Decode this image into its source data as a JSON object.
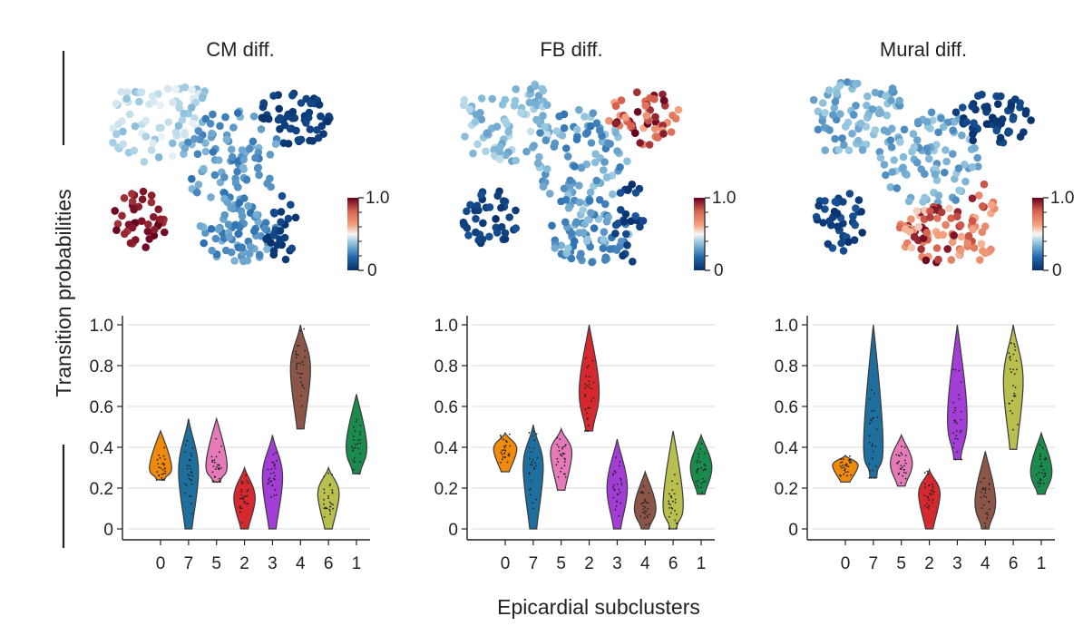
{
  "figure": {
    "ylabel": "Transition probabilities",
    "xlabel": "Epicardial subclusters",
    "colorbar_ticks": [
      "1.0",
      "0"
    ],
    "colors": {
      "0": "#f08a0a",
      "7": "#1f6f9e",
      "5": "#e57ab8",
      "2": "#d6282f",
      "3": "#a23ed6",
      "4": "#8b5547",
      "6": "#b8bf4e",
      "1": "#1b8a4d"
    }
  },
  "chart_data": [
    {
      "type": "violin",
      "title": "CM diff.",
      "categories": [
        "0",
        "7",
        "5",
        "2",
        "3",
        "4",
        "6",
        "1"
      ],
      "yticks": [
        "0",
        "0.2",
        "0.4",
        "0.6",
        "0.8",
        "1.0"
      ],
      "ylim": [
        0,
        1.0
      ],
      "series": [
        {
          "cluster": "0",
          "min": 0.24,
          "max": 0.48,
          "median": 0.3
        },
        {
          "cluster": "7",
          "min": 0.0,
          "max": 0.54,
          "median": 0.28
        },
        {
          "cluster": "5",
          "min": 0.23,
          "max": 0.54,
          "median": 0.31
        },
        {
          "cluster": "2",
          "min": 0.0,
          "max": 0.3,
          "median": 0.15
        },
        {
          "cluster": "3",
          "min": 0.0,
          "max": 0.46,
          "median": 0.25
        },
        {
          "cluster": "4",
          "min": 0.49,
          "max": 1.0,
          "median": 0.78
        },
        {
          "cluster": "6",
          "min": 0.0,
          "max": 0.3,
          "median": 0.17
        },
        {
          "cluster": "1",
          "min": 0.27,
          "max": 0.66,
          "median": 0.4
        }
      ]
    },
    {
      "type": "violin",
      "title": "FB diff.",
      "categories": [
        "0",
        "7",
        "5",
        "2",
        "3",
        "4",
        "6",
        "1"
      ],
      "yticks": [
        "0",
        "0.2",
        "0.4",
        "0.6",
        "0.8",
        "1.0"
      ],
      "ylim": [
        0,
        1.0
      ],
      "series": [
        {
          "cluster": "0",
          "min": 0.28,
          "max": 0.47,
          "median": 0.39
        },
        {
          "cluster": "7",
          "min": 0.0,
          "max": 0.51,
          "median": 0.3
        },
        {
          "cluster": "5",
          "min": 0.19,
          "max": 0.49,
          "median": 0.37
        },
        {
          "cluster": "2",
          "min": 0.48,
          "max": 1.0,
          "median": 0.67
        },
        {
          "cluster": "3",
          "min": 0.0,
          "max": 0.44,
          "median": 0.2
        },
        {
          "cluster": "4",
          "min": 0.0,
          "max": 0.28,
          "median": 0.1
        },
        {
          "cluster": "6",
          "min": 0.0,
          "max": 0.48,
          "median": 0.12
        },
        {
          "cluster": "1",
          "min": 0.17,
          "max": 0.46,
          "median": 0.3
        }
      ]
    },
    {
      "type": "violin",
      "title": "Mural diff.",
      "categories": [
        "0",
        "7",
        "5",
        "2",
        "3",
        "4",
        "6",
        "1"
      ],
      "yticks": [
        "0",
        "0.2",
        "0.4",
        "0.6",
        "0.8",
        "1.0"
      ],
      "ylim": [
        0,
        1.0
      ],
      "series": [
        {
          "cluster": "0",
          "min": 0.23,
          "max": 0.36,
          "median": 0.31
        },
        {
          "cluster": "7",
          "min": 0.25,
          "max": 1.0,
          "median": 0.41
        },
        {
          "cluster": "5",
          "min": 0.21,
          "max": 0.46,
          "median": 0.32
        },
        {
          "cluster": "2",
          "min": 0.0,
          "max": 0.29,
          "median": 0.17
        },
        {
          "cluster": "3",
          "min": 0.34,
          "max": 1.0,
          "median": 0.54
        },
        {
          "cluster": "4",
          "min": 0.0,
          "max": 0.38,
          "median": 0.13
        },
        {
          "cluster": "6",
          "min": 0.39,
          "max": 1.0,
          "median": 0.72
        },
        {
          "cluster": "1",
          "min": 0.17,
          "max": 0.47,
          "median": 0.28
        }
      ]
    }
  ]
}
